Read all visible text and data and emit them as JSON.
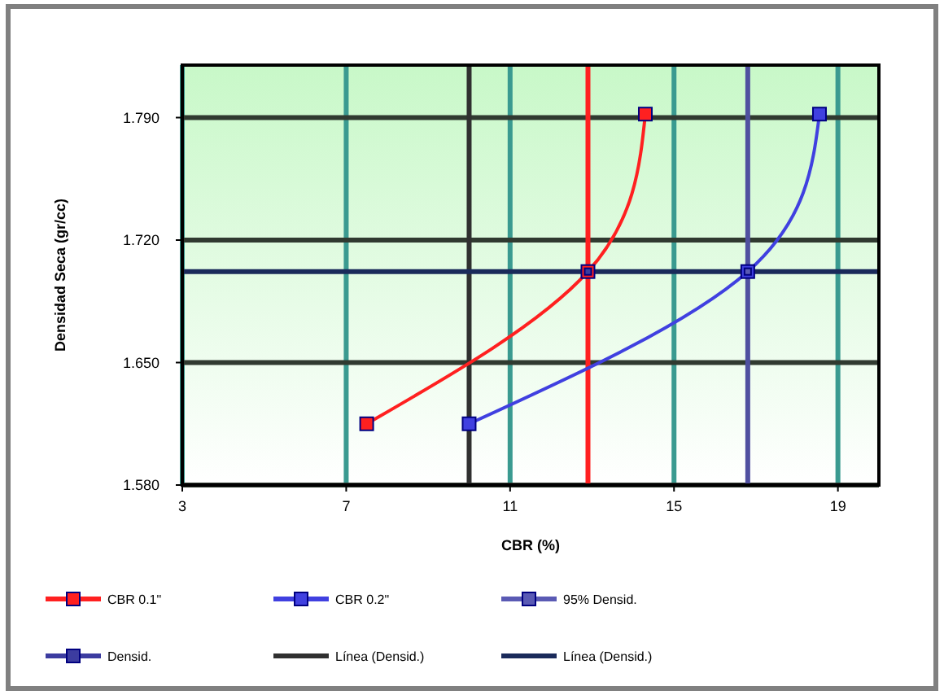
{
  "chart_data": {
    "type": "line",
    "xlabel": "CBR (%)",
    "ylabel": "Densidad Seca (gr/cc)",
    "xlim": [
      3,
      20
    ],
    "ylim": [
      1.58,
      1.82
    ],
    "xticks": [
      3,
      7,
      11,
      15,
      19
    ],
    "yticks": [
      {
        "value": 1.58,
        "label": "1.580"
      },
      {
        "value": 1.65,
        "label": "1.650"
      },
      {
        "value": 1.72,
        "label": "1.720"
      },
      {
        "value": 1.79,
        "label": "1.790"
      }
    ],
    "grid": true,
    "legend": "bottom",
    "marker": "square",
    "line_style": "solid",
    "series": [
      {
        "name": "CBR 0.1\"",
        "color": "#ff2020",
        "x": [
          7.5,
          12.9,
          14.3
        ],
        "values": [
          1.615,
          1.702,
          1.792
        ]
      },
      {
        "name": "CBR 0.2\"",
        "color": "#4040e0",
        "x": [
          10.0,
          16.8,
          18.55
        ],
        "values": [
          1.615,
          1.702,
          1.792
        ]
      },
      {
        "name": "95% Densid.",
        "type": "scatter",
        "color": "#5a5ab4",
        "x": [
          16.8
        ],
        "values": [
          1.702
        ]
      },
      {
        "name": "Densid.",
        "type": "scatter",
        "color": "#3c3ca0",
        "x": [
          12.9
        ],
        "values": [
          1.702
        ]
      }
    ],
    "ref_lines": [
      {
        "axis": "x",
        "value": 10,
        "label": "Línea (Densid.)",
        "color": "#303030"
      },
      {
        "axis": "y",
        "value": 1.702,
        "label": "Línea (Densid.)",
        "color": "#1a2a5a"
      },
      {
        "axis": "x",
        "value": 12.9,
        "color": "#ff2020"
      },
      {
        "axis": "x",
        "value": 16.8,
        "color": "#5050a0"
      }
    ]
  }
}
